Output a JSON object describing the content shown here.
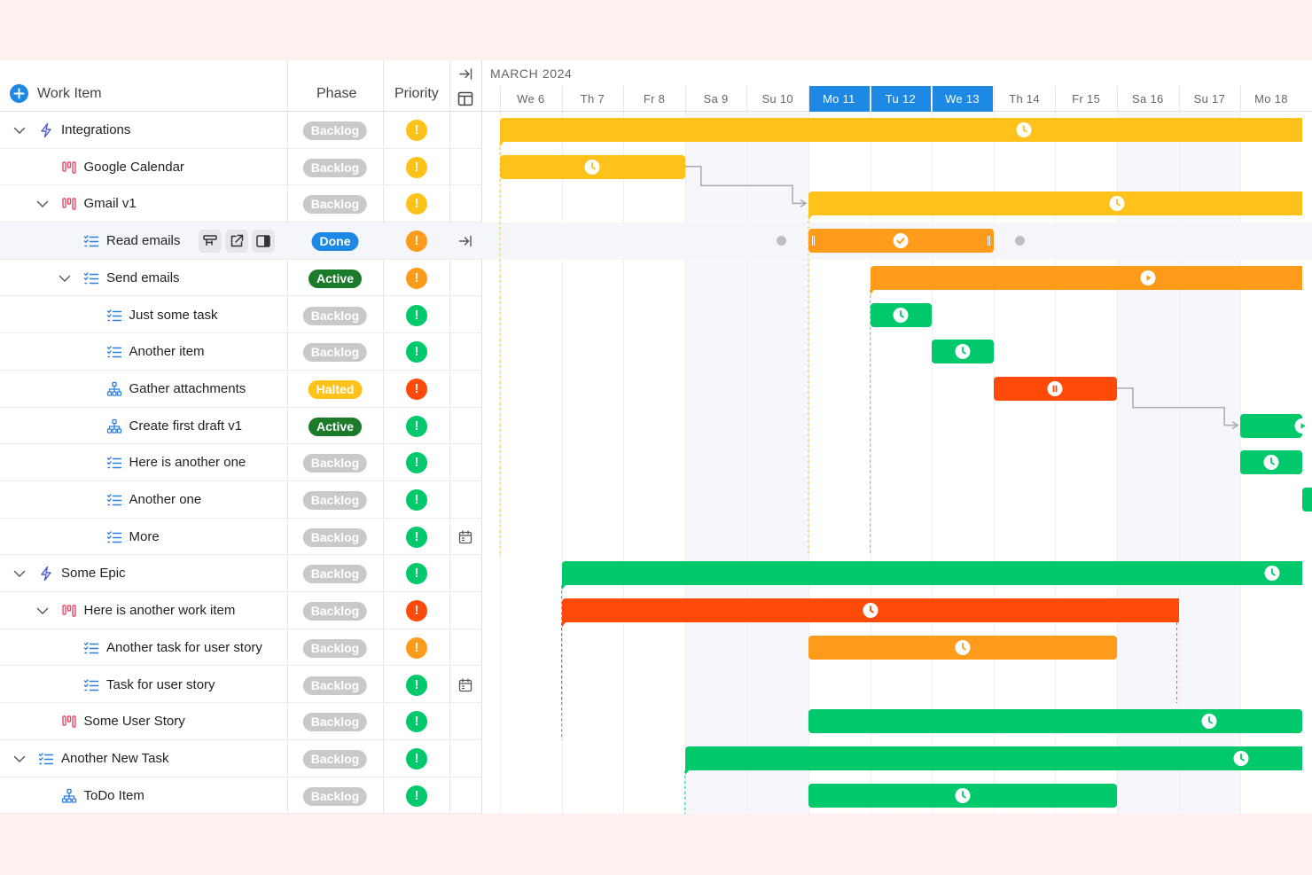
{
  "header": {
    "add_icon": "plus-circle-icon",
    "work_item": "Work Item",
    "phase": "Phase",
    "priority": "Priority",
    "collapse_icon": "arrow-right-to-line-icon",
    "columns_icon": "columns-icon"
  },
  "timeline": {
    "month": "MARCH 2024",
    "days": [
      {
        "label": "We 6",
        "selected": false,
        "weekend": false
      },
      {
        "label": "Th 7",
        "selected": false,
        "weekend": false
      },
      {
        "label": "Fr 8",
        "selected": false,
        "weekend": false
      },
      {
        "label": "Sa 9",
        "selected": false,
        "weekend": true
      },
      {
        "label": "Su 10",
        "selected": false,
        "weekend": true
      },
      {
        "label": "Mo 11",
        "selected": true,
        "weekend": false
      },
      {
        "label": "Tu 12",
        "selected": true,
        "weekend": false
      },
      {
        "label": "We 13",
        "selected": true,
        "weekend": false
      },
      {
        "label": "Th 14",
        "selected": false,
        "weekend": false
      },
      {
        "label": "Fr 15",
        "selected": false,
        "weekend": false
      },
      {
        "label": "Sa 16",
        "selected": false,
        "weekend": true
      },
      {
        "label": "Su 17",
        "selected": false,
        "weekend": true
      },
      {
        "label": "Mo 18",
        "selected": false,
        "weekend": false
      }
    ]
  },
  "colors": {
    "yellow": "#ffc21a",
    "orange": "#ff9b1a",
    "green": "#00c96b",
    "red": "#ff4a0a",
    "blue": "#1e88e5",
    "active_green": "#1c7a2b",
    "backlog_gray": "#c9c9cc",
    "halted_yellow": "#ffc21a"
  },
  "rows": [
    {
      "name": "Integrations",
      "type": "epic",
      "level": 0,
      "expanded": true,
      "phase": "Backlog",
      "priority": "yellow",
      "bar": {
        "start": 0,
        "end": 13,
        "color": "yellow",
        "icon": "clock",
        "parent": true
      }
    },
    {
      "name": "Google Calendar",
      "type": "story",
      "level": 1,
      "phase": "Backlog",
      "priority": "yellow",
      "bar": {
        "start": 0,
        "end": 3,
        "color": "yellow",
        "icon": "clock"
      }
    },
    {
      "name": "Gmail v1",
      "type": "story",
      "level": 1,
      "expanded": true,
      "phase": "Backlog",
      "priority": "yellow",
      "bar": {
        "start": 5,
        "end": 13,
        "color": "yellow",
        "icon": "clock",
        "parent": true
      }
    },
    {
      "name": "Read emails",
      "type": "task",
      "level": 2,
      "phase": "Done",
      "priority": "orange",
      "highlight": true,
      "tools": true,
      "side_icon": "arrow-right-to-line-icon",
      "bar": {
        "start": 5,
        "end": 8,
        "color": "orange",
        "icon": "check",
        "handles": true
      }
    },
    {
      "name": "Send emails",
      "type": "task",
      "level": 2,
      "expanded": true,
      "phase": "Active",
      "priority": "orange",
      "bar": {
        "start": 6,
        "end": 13,
        "color": "orange",
        "icon": "play",
        "parent": true
      }
    },
    {
      "name": "Just some task",
      "type": "task",
      "level": 3,
      "phase": "Backlog",
      "priority": "green",
      "bar": {
        "start": 6,
        "end": 7,
        "color": "green",
        "icon": "clock"
      }
    },
    {
      "name": "Another item",
      "type": "task",
      "level": 3,
      "phase": "Backlog",
      "priority": "green",
      "bar": {
        "start": 7,
        "end": 8,
        "color": "green",
        "icon": "clock"
      }
    },
    {
      "name": "Gather attachments",
      "type": "subtask",
      "level": 3,
      "phase": "Halted",
      "priority": "red",
      "bar": {
        "start": 8,
        "end": 10,
        "color": "red",
        "icon": "pause"
      }
    },
    {
      "name": "Create first draft v1",
      "type": "subtask",
      "level": 3,
      "phase": "Active",
      "priority": "green",
      "bar": {
        "start": 12,
        "end": 13,
        "color": "green",
        "icon": "play"
      }
    },
    {
      "name": "Here is another one",
      "type": "task",
      "level": 3,
      "phase": "Backlog",
      "priority": "green",
      "bar": {
        "start": 12,
        "end": 13,
        "color": "green",
        "icon": "clock"
      }
    },
    {
      "name": "Another one",
      "type": "task",
      "level": 3,
      "phase": "Backlog",
      "priority": "green",
      "bar": {
        "start": 13,
        "end": 14,
        "color": "green",
        "icon": "none"
      }
    },
    {
      "name": "More",
      "type": "task",
      "level": 3,
      "phase": "Backlog",
      "priority": "green",
      "side_icon": "calendar-icon",
      "bar": null
    },
    {
      "name": "Some Epic",
      "type": "epic",
      "level": 0,
      "expanded": true,
      "phase": "Backlog",
      "priority": "green",
      "bar": {
        "start": 1,
        "end": 13,
        "color": "green",
        "icon": "clock",
        "parent": true
      }
    },
    {
      "name": "Here is another work item",
      "type": "story",
      "level": 1,
      "expanded": true,
      "phase": "Backlog",
      "priority": "red",
      "bar": {
        "start": 1,
        "end": 11,
        "color": "red",
        "icon": "clock",
        "parent": true
      }
    },
    {
      "name": "Another task for user story",
      "type": "task",
      "level": 2,
      "phase": "Backlog",
      "priority": "orange",
      "bar": {
        "start": 5,
        "end": 10,
        "color": "orange",
        "icon": "clock"
      }
    },
    {
      "name": "Task for user story",
      "type": "task",
      "level": 2,
      "phase": "Backlog",
      "priority": "green",
      "side_icon": "calendar-icon",
      "bar": null
    },
    {
      "name": "Some User Story",
      "type": "story",
      "level": 1,
      "phase": "Backlog",
      "priority": "green",
      "bar": {
        "start": 5,
        "end": 13,
        "color": "green",
        "icon": "clock"
      }
    },
    {
      "name": "Another New Task",
      "type": "task",
      "level": 0,
      "expanded": true,
      "phase": "Backlog",
      "priority": "green",
      "bar": {
        "start": 3,
        "end": 13,
        "color": "green",
        "icon": "clock",
        "parent": true
      }
    },
    {
      "name": "ToDo Item",
      "type": "subtask",
      "level": 1,
      "phase": "Backlog",
      "priority": "green",
      "bar": {
        "start": 5,
        "end": 10,
        "color": "green",
        "icon": "clock"
      }
    }
  ],
  "tools": [
    "board-icon",
    "open-external-icon",
    "side-panel-icon"
  ]
}
